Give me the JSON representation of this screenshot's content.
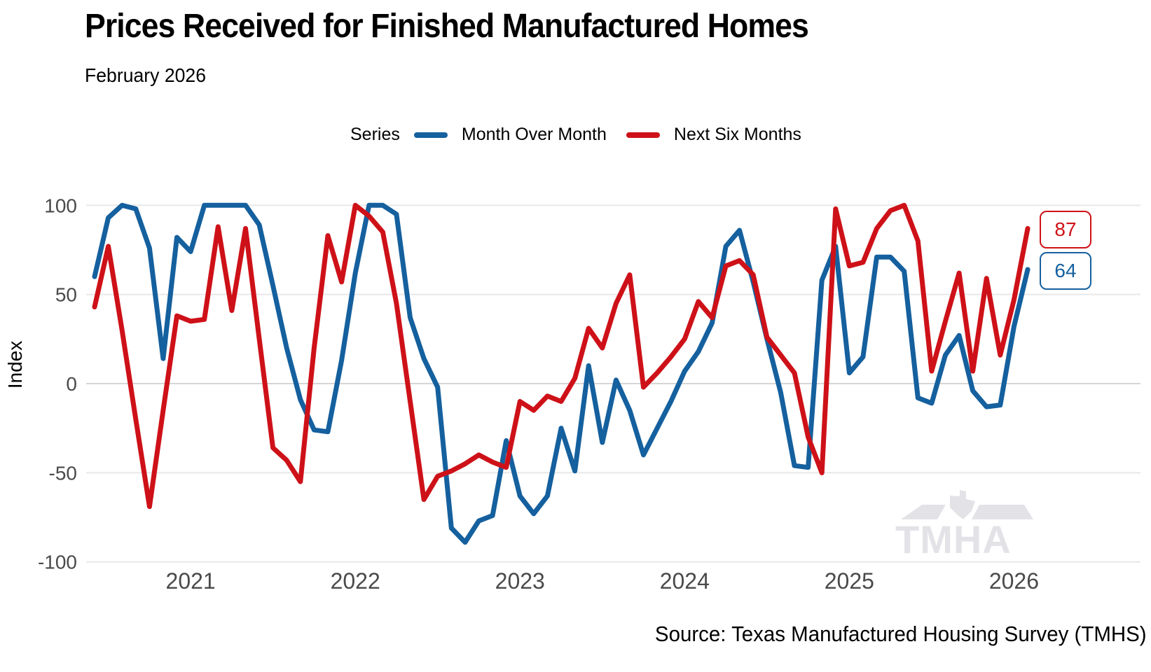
{
  "title": "Prices Received for Finished Manufactured Homes",
  "subtitle": "February 2026",
  "legend": {
    "label": "Series",
    "series": [
      {
        "name": "Month Over Month",
        "color": "#15609E"
      },
      {
        "name": "Next Six Months",
        "color": "#CE1118"
      }
    ]
  },
  "y_axis": {
    "label": "Index"
  },
  "end_labels": [
    {
      "series": "Next Six Months",
      "value": "87",
      "color": "#CE1118"
    },
    {
      "series": "Month Over Month",
      "value": "64",
      "color": "#15609E"
    }
  ],
  "watermark": "TMHA",
  "source": "Source: Texas Manufactured Housing Survey (TMHS)",
  "chart_data": {
    "type": "line",
    "title": "Prices Received for Finished Manufactured Homes",
    "subtitle": "February 2026",
    "ylabel": "Index",
    "ylim": [
      -100,
      100
    ],
    "y_ticks": [
      100,
      50,
      0,
      -50,
      -100
    ],
    "grid": "horizontal",
    "legend_position": "top",
    "months": [
      "Jun 2020",
      "Jul 2020",
      "Aug 2020",
      "Sep 2020",
      "Oct 2020",
      "Nov 2020",
      "Dec 2020",
      "Jan 2021",
      "Feb 2021",
      "Mar 2021",
      "Apr 2021",
      "May 2021",
      "Jun 2021",
      "Jul 2021",
      "Aug 2021",
      "Sep 2021",
      "Oct 2021",
      "Nov 2021",
      "Dec 2021",
      "Jan 2022",
      "Feb 2022",
      "Mar 2022",
      "Apr 2022",
      "May 2022",
      "Jun 2022",
      "Jul 2022",
      "Aug 2022",
      "Sep 2022",
      "Oct 2022",
      "Nov 2022",
      "Dec 2022",
      "Jan 2023",
      "Feb 2023",
      "Mar 2023",
      "Apr 2023",
      "May 2023",
      "Jun 2023",
      "Jul 2023",
      "Aug 2023",
      "Sep 2023",
      "Oct 2023",
      "Nov 2023",
      "Dec 2023",
      "Jan 2024",
      "Feb 2024",
      "Mar 2024",
      "Apr 2024",
      "May 2024",
      "Jun 2024",
      "Jul 2024",
      "Aug 2024",
      "Sep 2024",
      "Oct 2024",
      "Nov 2024",
      "Dec 2024",
      "Jan 2025",
      "Feb 2025",
      "Mar 2025",
      "Apr 2025",
      "May 2025",
      "Jun 2025",
      "Jul 2025",
      "Aug 2025",
      "Sep 2025",
      "Oct 2025",
      "Nov 2025",
      "Dec 2025",
      "Jan 2026",
      "Feb 2026"
    ],
    "x_ticks": [
      {
        "label": "2021",
        "month": "Jan 2021"
      },
      {
        "label": "2022",
        "month": "Jan 2022"
      },
      {
        "label": "2023",
        "month": "Jan 2023"
      },
      {
        "label": "2024",
        "month": "Jan 2024"
      },
      {
        "label": "2025",
        "month": "Jan 2025"
      },
      {
        "label": "2026",
        "month": "Jan 2026"
      }
    ],
    "series": [
      {
        "name": "Month Over Month",
        "color": "#15609E",
        "values": [
          60,
          93,
          100,
          98,
          76,
          14,
          82,
          74,
          100,
          100,
          100,
          100,
          89,
          55,
          20,
          -9,
          -26,
          -27,
          13,
          62,
          100,
          100,
          95,
          37,
          14,
          -2,
          -81,
          -89,
          -77,
          -74,
          -32,
          -63,
          -73,
          -63,
          -25,
          -49,
          10,
          -33,
          2,
          -15,
          -40,
          -25,
          -10,
          7,
          18,
          34,
          77,
          86,
          57,
          25,
          -5,
          -46,
          -47,
          58,
          77,
          6,
          15,
          71,
          71,
          63,
          -8,
          -11,
          16,
          27,
          -4,
          -13,
          -12,
          32,
          64
        ]
      },
      {
        "name": "Next Six Months",
        "color": "#CE1118",
        "values": [
          43,
          77,
          30,
          -20,
          -69,
          -15,
          38,
          35,
          36,
          88,
          41,
          87,
          25,
          -36,
          -43,
          -55,
          20,
          83,
          57,
          100,
          94,
          85,
          45,
          -10,
          -65,
          -52,
          -49,
          -45,
          -40,
          -44,
          -47,
          -10,
          -15,
          -7,
          -10,
          3,
          31,
          20,
          45,
          61,
          -2,
          6,
          15,
          25,
          46,
          37,
          66,
          69,
          61,
          26,
          16,
          6,
          -30,
          -50,
          98,
          66,
          68,
          87,
          97,
          100,
          80,
          7,
          35,
          62,
          7,
          59,
          16,
          47,
          87
        ]
      }
    ]
  }
}
